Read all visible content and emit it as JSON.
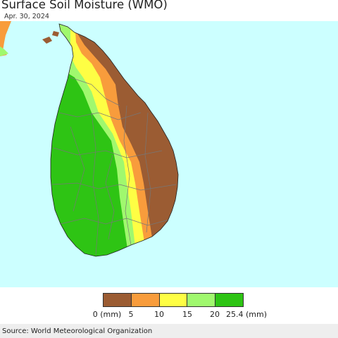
{
  "title": "Surface Soil Moisture (WMO)",
  "date": "Apr. 30, 2024",
  "source": "Source: World Meteorological Organization",
  "legend": {
    "colors": [
      "#9b5c33",
      "#f89c3c",
      "#fefe44",
      "#a0f86e",
      "#2ec414"
    ],
    "ticks": [
      "0 (mm)",
      "5",
      "10",
      "15",
      "20",
      "25.4 (mm)"
    ]
  },
  "map": {
    "sea_color": "#ccffff",
    "land_color_other": "#2ec414",
    "border_color": "#777777"
  }
}
